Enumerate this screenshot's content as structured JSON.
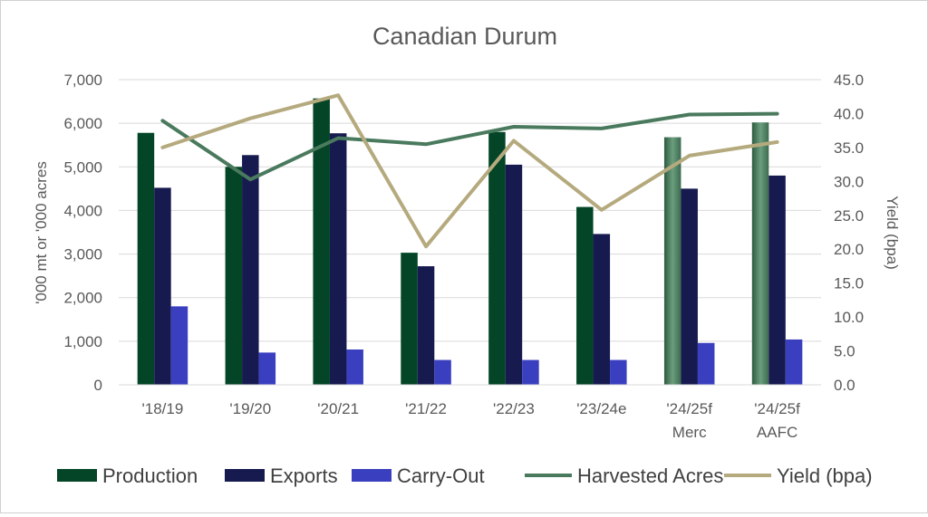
{
  "chart_data": {
    "type": "bar",
    "title": "Canadian Durum",
    "ylabel": "'000 mt or '000 acres",
    "y2label": "Yield (bpa)",
    "ylim": [
      0,
      7000
    ],
    "y2lim": [
      0,
      45
    ],
    "y_ticks": [
      "0",
      "1,000",
      "2,000",
      "3,000",
      "4,000",
      "5,000",
      "6,000",
      "7,000"
    ],
    "y2_ticks": [
      "0.0",
      "5.0",
      "10.0",
      "15.0",
      "20.0",
      "25.0",
      "30.0",
      "35.0",
      "40.0",
      "45.0"
    ],
    "categories": [
      [
        "'18/19"
      ],
      [
        "'19/20"
      ],
      [
        "'20/21"
      ],
      [
        "'21/22"
      ],
      [
        "'22/23"
      ],
      [
        "'23/24e"
      ],
      [
        "'24/25f",
        "Merc"
      ],
      [
        "'24/25f",
        "AAFC"
      ]
    ],
    "grid": true,
    "legend_position": "bottom",
    "series": [
      {
        "name": "Production",
        "type": "bar",
        "axis": "left",
        "color": "#034526",
        "values": [
          5780,
          5000,
          6570,
          3030,
          5800,
          4080,
          5680,
          6020
        ]
      },
      {
        "name": "Exports",
        "type": "bar",
        "axis": "left",
        "color": "#161a4f",
        "values": [
          4520,
          5270,
          5770,
          2720,
          5050,
          3460,
          4500,
          4800
        ]
      },
      {
        "name": "Carry-Out",
        "type": "bar",
        "axis": "left",
        "color": "#3a3fbf",
        "values": [
          1800,
          740,
          810,
          570,
          570,
          570,
          960,
          1040
        ]
      },
      {
        "name": "Harvested Acres",
        "type": "line",
        "axis": "left",
        "color": "#4a7a5e",
        "values": [
          6060,
          4710,
          5660,
          5520,
          5920,
          5880,
          6200,
          6220
        ]
      },
      {
        "name": "Yield (bpa)",
        "type": "line",
        "axis": "right",
        "color": "#b5aa7e",
        "values": [
          35.0,
          39.3,
          42.7,
          20.4,
          36.0,
          25.8,
          33.8,
          35.8
        ]
      }
    ]
  }
}
